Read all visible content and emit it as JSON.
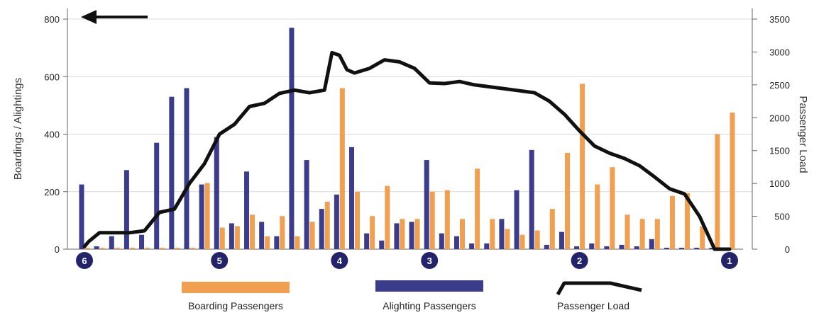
{
  "chart_data": {
    "type": "bar",
    "direction_arrow": "left",
    "y_left": {
      "label": "Boardings / Alightings",
      "range": [
        0,
        800
      ],
      "ticks": [
        "0",
        "200",
        "400",
        "600",
        "800"
      ]
    },
    "y_right": {
      "label": "Passenger Load",
      "range": [
        0,
        3500
      ],
      "ticks": [
        "0",
        "500",
        "1000",
        "1500",
        "2000",
        "2500",
        "3000",
        "3500"
      ]
    },
    "grid": true,
    "legend": {
      "placement": "bottom",
      "entries": [
        {
          "label": "Boarding Passengers",
          "color": "#F0A050"
        },
        {
          "label": "Alighting Passengers",
          "color": "#3C3C8C"
        },
        {
          "label": "Passenger Load",
          "color": "#111111"
        }
      ]
    },
    "stations": [
      {
        "label": "6",
        "stop": 0
      },
      {
        "label": "5",
        "stop": 9
      },
      {
        "label": "4",
        "stop": 17
      },
      {
        "label": "3",
        "stop": 23
      },
      {
        "label": "2",
        "stop": 33
      },
      {
        "label": "1",
        "stop": 43
      }
    ],
    "stop_count": 44,
    "series": [
      {
        "name": "Boarding Passengers",
        "values": [
          5,
          5,
          5,
          5,
          5,
          5,
          5,
          5,
          230,
          75,
          80,
          120,
          45,
          115,
          45,
          95,
          165,
          560,
          200,
          115,
          220,
          105,
          105,
          200,
          205,
          105,
          280,
          105,
          70,
          50,
          65,
          140,
          335,
          575,
          225,
          285,
          120,
          105,
          105,
          185,
          195,
          80,
          400,
          475
        ]
      },
      {
        "name": "Alighting Passengers",
        "values": [
          225,
          10,
          45,
          275,
          50,
          370,
          530,
          560,
          225,
          390,
          90,
          270,
          95,
          45,
          770,
          310,
          140,
          190,
          355,
          55,
          30,
          90,
          95,
          310,
          55,
          45,
          20,
          20,
          105,
          205,
          345,
          15,
          60,
          10,
          20,
          10,
          15,
          10,
          35,
          5,
          5,
          5,
          5,
          5
        ]
      },
      {
        "name": "Passenger Load",
        "x": [
          0,
          0.3,
          1,
          2,
          3,
          4,
          5,
          6,
          7,
          8,
          9,
          10,
          11,
          12,
          13,
          14,
          15,
          16,
          16.5,
          17,
          17.5,
          18,
          19,
          20,
          21,
          22,
          23,
          24,
          25,
          26,
          27,
          28,
          29,
          30,
          31,
          32,
          33,
          34,
          35,
          36,
          37,
          38,
          39,
          40,
          41,
          42,
          43
        ],
        "values": [
          40,
          120,
          250,
          250,
          250,
          280,
          560,
          610,
          1000,
          1300,
          1750,
          1900,
          2170,
          2220,
          2370,
          2420,
          2380,
          2420,
          2990,
          2950,
          2730,
          2680,
          2750,
          2880,
          2850,
          2750,
          2530,
          2520,
          2550,
          2500,
          2470,
          2440,
          2410,
          2380,
          2250,
          2050,
          1800,
          1570,
          1460,
          1380,
          1270,
          1100,
          920,
          840,
          500,
          0,
          0
        ]
      }
    ]
  }
}
